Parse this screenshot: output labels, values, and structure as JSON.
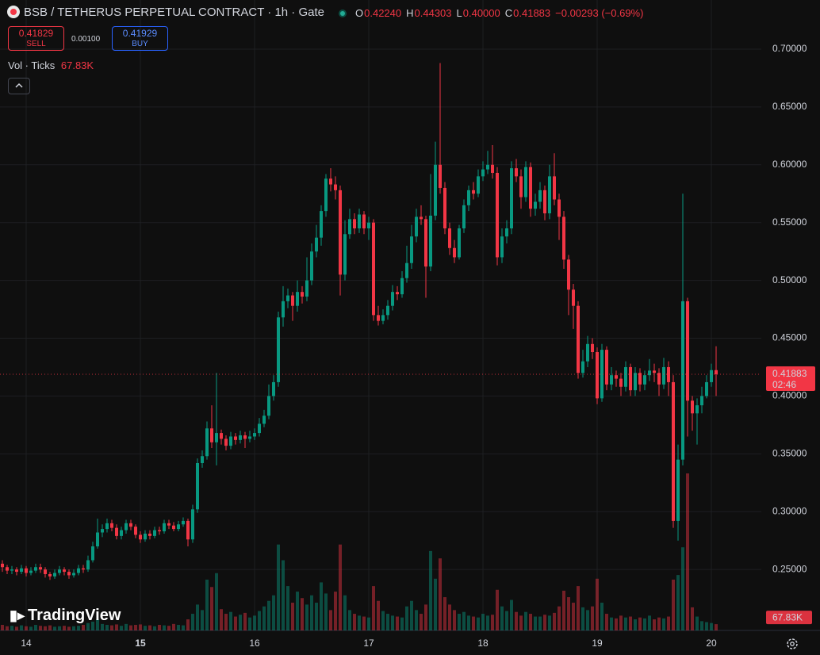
{
  "header": {
    "title": "BSB / TETHERUS PERPETUAL CONTRACT · 1h · Gate",
    "ohlc": [
      {
        "label": "O",
        "value": "0.42240"
      },
      {
        "label": "H",
        "value": "0.44303"
      },
      {
        "label": "L",
        "value": "0.40000"
      },
      {
        "label": "C",
        "value": "0.41883"
      }
    ],
    "change": "−0.00293 (−0.69%)",
    "sell": {
      "price": "0.41829",
      "label": "SELL"
    },
    "spread": "0.00100",
    "buy": {
      "price": "0.41929",
      "label": "BUY"
    },
    "indicator": {
      "name": "Vol · Ticks",
      "value": "67.83K"
    },
    "brand": "TradingView"
  },
  "chart_data": {
    "type": "candlestick",
    "categories": [
      null,
      null,
      null,
      null,
      null,
      "14",
      null,
      null,
      null,
      null,
      null,
      null,
      null,
      null,
      null,
      null,
      null,
      null,
      null,
      null,
      null,
      null,
      null,
      null,
      null,
      null,
      null,
      null,
      null,
      "15",
      null,
      null,
      null,
      null,
      null,
      null,
      null,
      null,
      null,
      null,
      null,
      null,
      null,
      null,
      null,
      null,
      null,
      null,
      null,
      null,
      null,
      null,
      null,
      "16",
      null,
      null,
      null,
      null,
      null,
      null,
      null,
      null,
      null,
      null,
      null,
      null,
      null,
      null,
      null,
      null,
      null,
      null,
      null,
      null,
      null,
      null,
      null,
      "17",
      null,
      null,
      null,
      null,
      null,
      null,
      null,
      null,
      null,
      null,
      null,
      null,
      null,
      null,
      null,
      null,
      null,
      null,
      null,
      null,
      null,
      null,
      null,
      "18",
      null,
      null,
      null,
      null,
      null,
      null,
      null,
      null,
      null,
      null,
      null,
      null,
      null,
      null,
      null,
      null,
      null,
      null,
      null,
      null,
      null,
      null,
      null,
      "19",
      null,
      null,
      null,
      null,
      null,
      null,
      null,
      null,
      null,
      null,
      null,
      null,
      null,
      null,
      null,
      null,
      null,
      null,
      null,
      null,
      null,
      null,
      null,
      "20",
      null
    ],
    "open": [
      0.255,
      0.252,
      0.249,
      0.25,
      0.248,
      0.251,
      0.247,
      0.249,
      0.252,
      0.25,
      0.246,
      0.244,
      0.247,
      0.25,
      0.248,
      0.245,
      0.247,
      0.251,
      0.25,
      0.258,
      0.27,
      0.282,
      0.285,
      0.29,
      0.286,
      0.279,
      0.284,
      0.29,
      0.287,
      0.28,
      0.276,
      0.281,
      0.279,
      0.284,
      0.283,
      0.29,
      0.288,
      0.285,
      0.289,
      0.292,
      0.276,
      0.302,
      0.342,
      0.348,
      0.372,
      0.36,
      0.368,
      0.363,
      0.357,
      0.365,
      0.362,
      0.366,
      0.363,
      0.365,
      0.368,
      0.376,
      0.383,
      0.4,
      0.412,
      0.468,
      0.482,
      0.487,
      0.478,
      0.49,
      0.486,
      0.5,
      0.525,
      0.537,
      0.56,
      0.588,
      0.583,
      0.578,
      0.505,
      0.54,
      0.553,
      0.545,
      0.557,
      0.545,
      0.55,
      0.47,
      0.465,
      0.47,
      0.478,
      0.49,
      0.488,
      0.502,
      0.515,
      0.538,
      0.555,
      0.553,
      0.512,
      0.556,
      0.6,
      0.58,
      0.545,
      0.528,
      0.52,
      0.545,
      0.565,
      0.578,
      0.575,
      0.59,
      0.596,
      0.6,
      0.593,
      0.52,
      0.538,
      0.545,
      0.597,
      0.59,
      0.572,
      0.598,
      0.562,
      0.568,
      0.578,
      0.558,
      0.59,
      0.57,
      0.555,
      0.518,
      0.492,
      0.478,
      0.42,
      0.43,
      0.445,
      0.438,
      0.398,
      0.44,
      0.41,
      0.418,
      0.415,
      0.408,
      0.425,
      0.405,
      0.42,
      0.41,
      0.418,
      0.422,
      0.42,
      0.41,
      0.425,
      0.412,
      0.292,
      0.345,
      0.482,
      0.396,
      0.385,
      0.392,
      0.4,
      0.412,
      0.4224
    ],
    "high": [
      0.258,
      0.254,
      0.253,
      0.252,
      0.254,
      0.253,
      0.252,
      0.255,
      0.255,
      0.252,
      0.248,
      0.25,
      0.253,
      0.252,
      0.25,
      0.25,
      0.254,
      0.254,
      0.262,
      0.274,
      0.294,
      0.289,
      0.294,
      0.293,
      0.289,
      0.287,
      0.293,
      0.293,
      0.289,
      0.283,
      0.284,
      0.284,
      0.287,
      0.287,
      0.293,
      0.293,
      0.291,
      0.292,
      0.295,
      0.294,
      0.306,
      0.346,
      0.353,
      0.378,
      0.392,
      0.42,
      0.371,
      0.366,
      0.369,
      0.368,
      0.37,
      0.369,
      0.37,
      0.372,
      0.381,
      0.388,
      0.41,
      0.418,
      0.473,
      0.495,
      0.493,
      0.49,
      0.5,
      0.495,
      0.52,
      0.532,
      0.548,
      0.565,
      0.592,
      0.597,
      0.59,
      0.582,
      0.552,
      0.562,
      0.558,
      0.562,
      0.56,
      0.555,
      0.553,
      0.478,
      0.475,
      0.483,
      0.496,
      0.495,
      0.508,
      0.53,
      0.548,
      0.562,
      0.565,
      0.556,
      0.592,
      0.62,
      0.688,
      0.585,
      0.55,
      0.535,
      0.548,
      0.57,
      0.582,
      0.585,
      0.596,
      0.603,
      0.612,
      0.617,
      0.598,
      0.545,
      0.552,
      0.603,
      0.605,
      0.596,
      0.603,
      0.602,
      0.575,
      0.585,
      0.582,
      0.6,
      0.61,
      0.575,
      0.56,
      0.522,
      0.497,
      0.482,
      0.44,
      0.452,
      0.45,
      0.442,
      0.445,
      0.443,
      0.425,
      0.422,
      0.42,
      0.43,
      0.428,
      0.425,
      0.424,
      0.422,
      0.432,
      0.428,
      0.424,
      0.433,
      0.43,
      0.418,
      0.358,
      0.575,
      0.485,
      0.4,
      0.398,
      0.408,
      0.418,
      0.428,
      0.44303
    ],
    "low": [
      0.248,
      0.246,
      0.246,
      0.245,
      0.246,
      0.244,
      0.245,
      0.247,
      0.247,
      0.243,
      0.241,
      0.242,
      0.245,
      0.245,
      0.242,
      0.243,
      0.245,
      0.247,
      0.248,
      0.256,
      0.268,
      0.278,
      0.282,
      0.283,
      0.276,
      0.276,
      0.281,
      0.284,
      0.277,
      0.273,
      0.274,
      0.276,
      0.277,
      0.28,
      0.281,
      0.285,
      0.283,
      0.283,
      0.287,
      0.27,
      0.273,
      0.299,
      0.338,
      0.345,
      0.355,
      0.34,
      0.358,
      0.353,
      0.354,
      0.358,
      0.359,
      0.355,
      0.36,
      0.362,
      0.365,
      0.373,
      0.38,
      0.396,
      0.408,
      0.46,
      0.476,
      0.465,
      0.473,
      0.48,
      0.482,
      0.496,
      0.52,
      0.53,
      0.555,
      0.577,
      0.57,
      0.487,
      0.5,
      0.536,
      0.54,
      0.541,
      0.54,
      0.535,
      0.465,
      0.461,
      0.462,
      0.466,
      0.474,
      0.483,
      0.485,
      0.498,
      0.51,
      0.533,
      0.548,
      0.485,
      0.508,
      0.552,
      0.575,
      0.54,
      0.522,
      0.515,
      0.518,
      0.541,
      0.56,
      0.57,
      0.572,
      0.586,
      0.592,
      0.588,
      0.513,
      0.515,
      0.532,
      0.54,
      0.585,
      0.562,
      0.568,
      0.555,
      0.556,
      0.562,
      0.552,
      0.553,
      0.565,
      0.535,
      0.51,
      0.47,
      0.458,
      0.415,
      0.416,
      0.425,
      0.432,
      0.393,
      0.395,
      0.405,
      0.405,
      0.408,
      0.4,
      0.404,
      0.4,
      0.4,
      0.404,
      0.405,
      0.413,
      0.412,
      0.4,
      0.406,
      0.4,
      0.286,
      0.275,
      0.34,
      0.365,
      0.37,
      0.358,
      0.385,
      0.398,
      0.408,
      0.4
    ],
    "close": [
      0.252,
      0.249,
      0.25,
      0.248,
      0.251,
      0.247,
      0.249,
      0.252,
      0.25,
      0.246,
      0.244,
      0.247,
      0.25,
      0.248,
      0.245,
      0.247,
      0.251,
      0.25,
      0.258,
      0.27,
      0.282,
      0.285,
      0.29,
      0.286,
      0.279,
      0.284,
      0.29,
      0.287,
      0.28,
      0.276,
      0.281,
      0.279,
      0.284,
      0.283,
      0.29,
      0.288,
      0.285,
      0.289,
      0.292,
      0.276,
      0.302,
      0.342,
      0.348,
      0.372,
      0.36,
      0.368,
      0.363,
      0.357,
      0.365,
      0.362,
      0.366,
      0.363,
      0.365,
      0.368,
      0.376,
      0.383,
      0.4,
      0.412,
      0.468,
      0.482,
      0.487,
      0.478,
      0.49,
      0.486,
      0.5,
      0.525,
      0.537,
      0.56,
      0.588,
      0.583,
      0.578,
      0.505,
      0.54,
      0.553,
      0.545,
      0.557,
      0.545,
      0.55,
      0.47,
      0.465,
      0.47,
      0.478,
      0.49,
      0.488,
      0.502,
      0.515,
      0.538,
      0.555,
      0.553,
      0.512,
      0.556,
      0.6,
      0.58,
      0.545,
      0.528,
      0.52,
      0.545,
      0.565,
      0.578,
      0.575,
      0.59,
      0.596,
      0.6,
      0.593,
      0.52,
      0.538,
      0.545,
      0.597,
      0.59,
      0.572,
      0.598,
      0.562,
      0.568,
      0.578,
      0.558,
      0.59,
      0.57,
      0.555,
      0.518,
      0.492,
      0.478,
      0.42,
      0.43,
      0.445,
      0.438,
      0.398,
      0.44,
      0.41,
      0.418,
      0.415,
      0.408,
      0.425,
      0.405,
      0.42,
      0.41,
      0.418,
      0.422,
      0.42,
      0.41,
      0.425,
      0.412,
      0.292,
      0.345,
      0.482,
      0.396,
      0.385,
      0.392,
      0.4,
      0.412,
      0.4224,
      0.41883
    ],
    "volume": [
      60000,
      45000,
      50000,
      40000,
      55000,
      45000,
      40000,
      60000,
      50000,
      45000,
      55000,
      40000,
      45000,
      50000,
      40000,
      45000,
      50000,
      60000,
      80000,
      95000,
      120000,
      70000,
      60000,
      55000,
      65000,
      50000,
      70000,
      55000,
      60000,
      65000,
      50000,
      55000,
      45000,
      60000,
      55000,
      50000,
      70000,
      60000,
      55000,
      120000,
      180000,
      280000,
      220000,
      550000,
      470000,
      620000,
      230000,
      180000,
      200000,
      150000,
      170000,
      190000,
      140000,
      160000,
      210000,
      260000,
      320000,
      380000,
      930000,
      760000,
      480000,
      300000,
      420000,
      350000,
      280000,
      380000,
      300000,
      520000,
      400000,
      220000,
      420000,
      930000,
      380000,
      220000,
      180000,
      160000,
      150000,
      140000,
      480000,
      320000,
      210000,
      180000,
      160000,
      150000,
      140000,
      260000,
      320000,
      220000,
      180000,
      280000,
      860000,
      560000,
      780000,
      360000,
      280000,
      220000,
      180000,
      200000,
      160000,
      150000,
      140000,
      180000,
      160000,
      170000,
      440000,
      260000,
      210000,
      330000,
      200000,
      160000,
      200000,
      180000,
      150000,
      150000,
      170000,
      160000,
      190000,
      260000,
      430000,
      360000,
      300000,
      480000,
      250000,
      220000,
      260000,
      560000,
      300000,
      180000,
      140000,
      130000,
      160000,
      140000,
      150000,
      120000,
      140000,
      130000,
      160000,
      120000,
      140000,
      130000,
      150000,
      550000,
      600000,
      900000,
      1700000,
      250000,
      150000,
      100000,
      90000,
      80000,
      67830
    ],
    "up_color": "#089981",
    "down_color": "#f23645",
    "ylim": [
      0.1973,
      0.7425
    ],
    "yticks": [
      {
        "value": 0.25,
        "label": "0.25000"
      },
      {
        "value": 0.3,
        "label": "0.30000"
      },
      {
        "value": 0.35,
        "label": "0.35000"
      },
      {
        "value": 0.4,
        "label": "0.40000"
      },
      {
        "value": 0.45,
        "label": "0.45000"
      },
      {
        "value": 0.5,
        "label": "0.50000"
      },
      {
        "value": 0.55,
        "label": "0.55000"
      },
      {
        "value": 0.6,
        "label": "0.60000"
      },
      {
        "value": 0.65,
        "label": "0.65000"
      },
      {
        "value": 0.7,
        "label": "0.70000"
      }
    ],
    "grid": true,
    "last_price_label": "0.41883",
    "countdown": "02:46",
    "volume_label": "67.83K"
  }
}
